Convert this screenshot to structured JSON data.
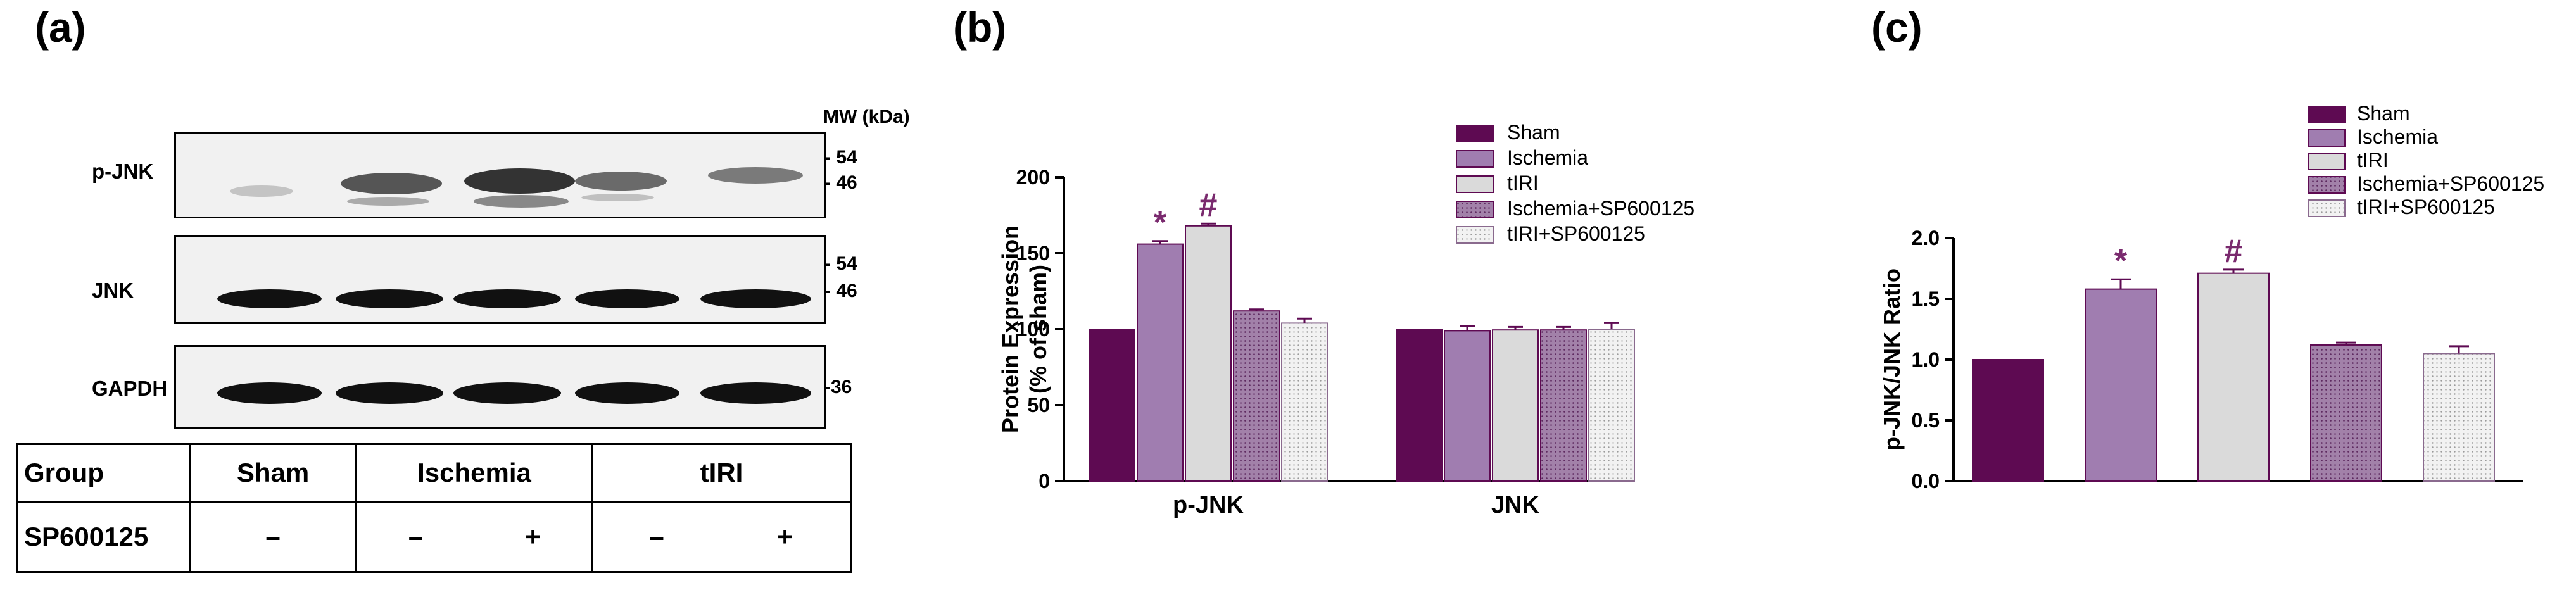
{
  "panel_a": {
    "label": "(a)",
    "mw_header": "MW (kDa)",
    "blots": [
      {
        "protein": "p-JNK",
        "markers": [
          "54",
          "46"
        ]
      },
      {
        "protein": "JNK",
        "markers": [
          "54",
          "46"
        ]
      },
      {
        "protein": "GAPDH",
        "markers": [
          "36"
        ]
      }
    ],
    "table": {
      "row1_header": "Group",
      "row2_header": "SP600125",
      "groups": [
        "Sham",
        "Ischemia",
        "tIRI"
      ],
      "treatment": [
        "–",
        "–",
        "+",
        "–",
        "+"
      ]
    }
  },
  "chart_data": [
    {
      "panel": "(b)",
      "type": "bar",
      "categories": [
        "p-JNK",
        "JNK"
      ],
      "ylabel_line1": "Protein Expression",
      "ylabel_line2": "(% of sham)",
      "ylim": [
        0,
        200
      ],
      "yticks": [
        "0",
        "50",
        "100",
        "150",
        "200"
      ],
      "series": [
        {
          "name": "Sham",
          "values": [
            100,
            100
          ],
          "errors": [
            0,
            0
          ],
          "color": "#5e0a52"
        },
        {
          "name": "Ischemia",
          "values": [
            156,
            99
          ],
          "errors": [
            2,
            3
          ],
          "color": "#a07db0"
        },
        {
          "name": "tIRI",
          "values": [
            168,
            99.5
          ],
          "errors": [
            1.5,
            2
          ],
          "color": "#dadada"
        },
        {
          "name": "Ischemia+SP600125",
          "values": [
            112,
            99.5
          ],
          "errors": [
            1,
            2
          ],
          "color": "#a281a9"
        },
        {
          "name": "tIRI+SP600125",
          "values": [
            104,
            100
          ],
          "errors": [
            3,
            4
          ],
          "color": "#ededed"
        }
      ],
      "annotations": [
        {
          "text": "*",
          "category": "p-JNK",
          "series": "Ischemia",
          "color": "#7a2a6e"
        },
        {
          "text": "#",
          "category": "p-JNK",
          "series": "tIRI",
          "color": "#7a2a6e"
        }
      ],
      "legend_position": "top-right"
    },
    {
      "panel": "(c)",
      "type": "bar",
      "categories": [
        "Sham",
        "Ischemia",
        "tIRI",
        "Ischemia+SP600125",
        "tIRI+SP600125"
      ],
      "ylabel": "p-JNK/JNK Ratio",
      "ylim": [
        0,
        2.0
      ],
      "yticks": [
        "0.0",
        "0.5",
        "1.0",
        "1.5",
        "2.0"
      ],
      "values": [
        1.0,
        1.58,
        1.71,
        1.12,
        1.05
      ],
      "errors": [
        0,
        0.08,
        0.03,
        0.02,
        0.06
      ],
      "colors": [
        "#5e0a52",
        "#a07db0",
        "#dadada",
        "#a281a9",
        "#ededed"
      ],
      "annotations": [
        {
          "text": "*",
          "category": "Ischemia",
          "color": "#7a2a6e"
        },
        {
          "text": "#",
          "category": "tIRI",
          "color": "#7a2a6e"
        }
      ],
      "legend_position": "top-right"
    }
  ]
}
